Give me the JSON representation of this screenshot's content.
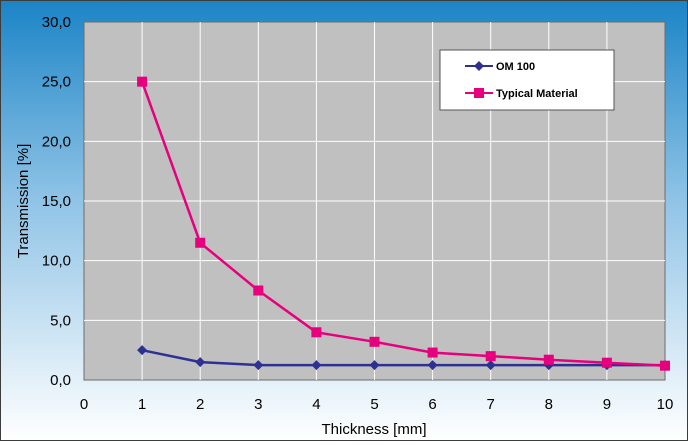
{
  "chart_data": {
    "type": "line",
    "title": "",
    "xlabel": "Thickness [mm]",
    "ylabel": "Transmission [%]",
    "xlim": [
      0,
      10
    ],
    "ylim": [
      0,
      30
    ],
    "x_ticks": [
      "0",
      "1",
      "2",
      "3",
      "4",
      "5",
      "6",
      "7",
      "8",
      "9",
      "10"
    ],
    "y_ticks": [
      "0,0",
      "5,0",
      "10,0",
      "15,0",
      "20,0",
      "25,0",
      "30,0"
    ],
    "grid": true,
    "legend_position": "top-right",
    "series": [
      {
        "name": "OM 100",
        "color": "#2e3192",
        "marker": "diamond",
        "x": [
          1,
          2,
          3,
          4,
          5,
          6,
          7,
          8,
          9,
          10
        ],
        "values": [
          2.5,
          1.5,
          1.25,
          1.25,
          1.25,
          1.25,
          1.25,
          1.25,
          1.25,
          1.25
        ]
      },
      {
        "name": "Typical Material",
        "color": "#e6007e",
        "marker": "square",
        "x": [
          1,
          2,
          3,
          4,
          5,
          6,
          7,
          8,
          9,
          10
        ],
        "values": [
          25.0,
          11.5,
          7.5,
          4.0,
          3.2,
          2.3,
          2.0,
          1.7,
          1.45,
          1.2
        ]
      }
    ]
  }
}
